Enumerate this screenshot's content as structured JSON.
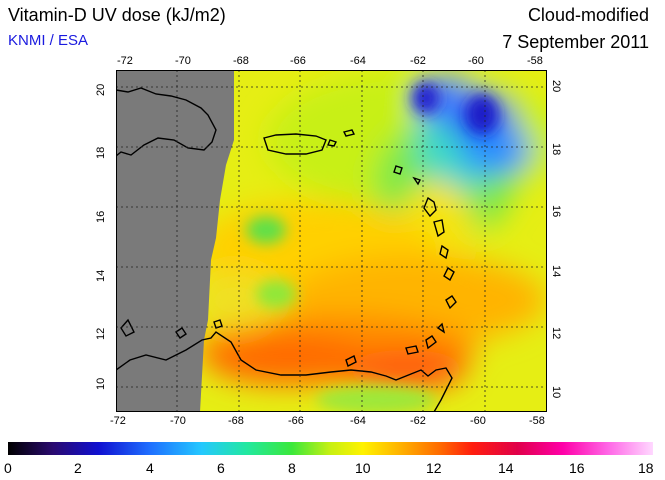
{
  "header": {
    "title": "Vitamin-D UV dose (kJ/m2)",
    "subtitle": "KNMI / ESA",
    "mode": "Cloud-modified",
    "date": "7 September 2011"
  },
  "map": {
    "lon_ticks": [
      "-72",
      "-70",
      "-68",
      "-66",
      "-64",
      "-62",
      "-60",
      "-58"
    ],
    "lat_ticks": [
      "10",
      "12",
      "14",
      "16",
      "18",
      "20"
    ],
    "lon_range": [
      -72,
      -58
    ],
    "lat_range": [
      9.5,
      21
    ],
    "no_data_color": "#7a7a7a",
    "grid": "dotted"
  },
  "colorbar": {
    "ticks": [
      "0",
      "2",
      "4",
      "6",
      "8",
      "10",
      "12",
      "14",
      "16",
      "18"
    ],
    "range": [
      0,
      18
    ],
    "colors": [
      "#000000",
      "#2a0a70",
      "#1010d0",
      "#1f6fff",
      "#24c8ff",
      "#22e8a0",
      "#3be83b",
      "#c8f012",
      "#fff200",
      "#ffb000",
      "#ff6a00",
      "#ff1e0e",
      "#e0004a",
      "#ff00a8",
      "#ff66e6",
      "#ffd8ff"
    ]
  }
}
